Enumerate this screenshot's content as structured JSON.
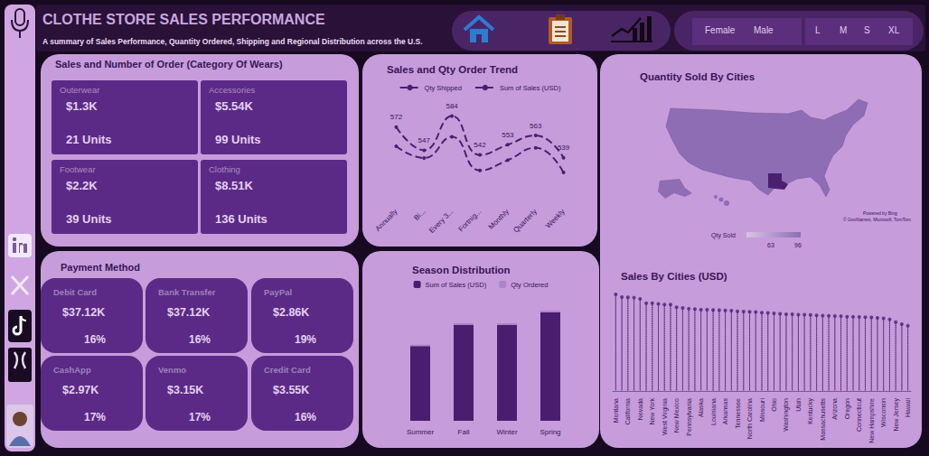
{
  "header": {
    "title": "CLOTHE STORE SALES PERFORMANCE",
    "subtitle": "A summary of Sales Performance, Quantity Ordered, Shipping and Regional Distribution across the U.S."
  },
  "filters": {
    "gender": [
      "Female",
      "Male"
    ],
    "size": [
      "L",
      "M",
      "S",
      "XL"
    ]
  },
  "category_panel": {
    "title": "Sales and Number of Order (Category Of Wears)",
    "cards": [
      {
        "name": "Outerwear",
        "sales": "$1.3K",
        "units": "21 Units"
      },
      {
        "name": "Accessories",
        "sales": "$5.54K",
        "units": "99 Units"
      },
      {
        "name": "Footwear",
        "sales": "$2.2K",
        "units": "39 Units"
      },
      {
        "name": "Clothing",
        "sales": "$8.51K",
        "units": "136 Units"
      }
    ]
  },
  "payment_panel": {
    "title": "Payment Method",
    "cards": [
      {
        "name": "Debit Card",
        "sales": "$37.12K",
        "share": "16%"
      },
      {
        "name": "Bank Transfer",
        "sales": "$37.12K",
        "share": "16%"
      },
      {
        "name": "PayPal",
        "sales": "$2.86K",
        "share": "19%"
      },
      {
        "name": "CashApp",
        "sales": "$2.97K",
        "share": "17%"
      },
      {
        "name": "Venmo",
        "sales": "$3.15K",
        "share": "17%"
      },
      {
        "name": "Credit Card",
        "sales": "$3.55K",
        "share": "16%"
      }
    ]
  },
  "map_panel": {
    "title": "Quantity Sold By Cities",
    "legend_label": "Qty Sold",
    "scale_min": 63,
    "scale_max": 96,
    "attribution": [
      "Powered by Bing",
      "© GeoNames, Microsoft, TomTom"
    ]
  },
  "chart_data": [
    {
      "type": "line",
      "title": "Sales and Qty Order Trend",
      "categories": [
        "Annually",
        "Bi...",
        "Every 3...",
        "Fortnig...",
        "Monthly",
        "Quarterly",
        "Weekly"
      ],
      "series": [
        {
          "name": "Qty Shipped",
          "color": "#4b1f70",
          "values": [
            572,
            547,
            584,
            542,
            553,
            563,
            539
          ],
          "data_labels": true,
          "line_style": "dashed",
          "marker": "circle"
        },
        {
          "name": "Sum of Sales (USD)",
          "color": "#4b1f70",
          "values": [
            2580,
            2420,
            2710,
            2250,
            2390,
            2560,
            2220
          ],
          "axis": "y2",
          "line_style": "dashed",
          "marker": "circle"
        }
      ],
      "ylim": [
        490,
        600
      ],
      "y2lim": [
        1800,
        3200
      ],
      "tick_labels": "x",
      "legend": "top",
      "grid": false
    },
    {
      "type": "bar",
      "title": "Season Distribution",
      "categories": [
        "Summer",
        "Fall",
        "Winter",
        "Spring"
      ],
      "series": [
        {
          "name": "Sum of Sales (USD)",
          "color": "#4a1d6e",
          "values": [
            3650,
            4690,
            4690,
            5300
          ]
        },
        {
          "name": "Qty Ordered",
          "color": "#a987c6",
          "values": [
            68,
            76,
            74,
            77
          ]
        }
      ],
      "stacked": true,
      "ylim": [
        0,
        6000
      ],
      "tick_labels": "x",
      "legend": "top",
      "grid": false
    },
    {
      "type": "scatter",
      "title": "Sales By Cities (USD)",
      "categories": [
        "Montana",
        null,
        "California",
        null,
        "Nevada",
        null,
        "New York",
        null,
        "West Virginia",
        null,
        "New Mexico",
        null,
        "Pennsylvania",
        null,
        "Alaska",
        null,
        "Louisiana",
        null,
        "Arkansas",
        null,
        "Tennessee",
        null,
        "North Carolina",
        null,
        "Missouri",
        null,
        "Ohio",
        null,
        "Washington",
        null,
        "Utah",
        null,
        "Kentucky",
        null,
        "Massachusetts",
        null,
        "Arizona",
        null,
        "Oregon",
        null,
        "Connecticut",
        null,
        "New Hampshire",
        null,
        "Wisconsin",
        null,
        "New Jersey",
        null,
        "Hawaii"
      ],
      "values": [
        5784,
        5617,
        5605,
        5587,
        5514,
        5261,
        5257,
        5220,
        5174,
        5172,
        5014,
        4977,
        4926,
        4900,
        4867,
        4860,
        4848,
        4842,
        4828,
        4814,
        4772,
        4758,
        4742,
        4730,
        4691,
        4680,
        4649,
        4620,
        4598,
        4590,
        4570,
        4562,
        4550,
        4530,
        4515,
        4500,
        4490,
        4480,
        4450,
        4440,
        4430,
        4420,
        4400,
        4380,
        4350,
        4290,
        4120,
        4000,
        3900
      ],
      "color": "#4b1f70",
      "marker": "circle",
      "line_style": "dotted",
      "ylim": [
        0,
        6000
      ],
      "tick_labels": "x",
      "grid": false
    }
  ]
}
